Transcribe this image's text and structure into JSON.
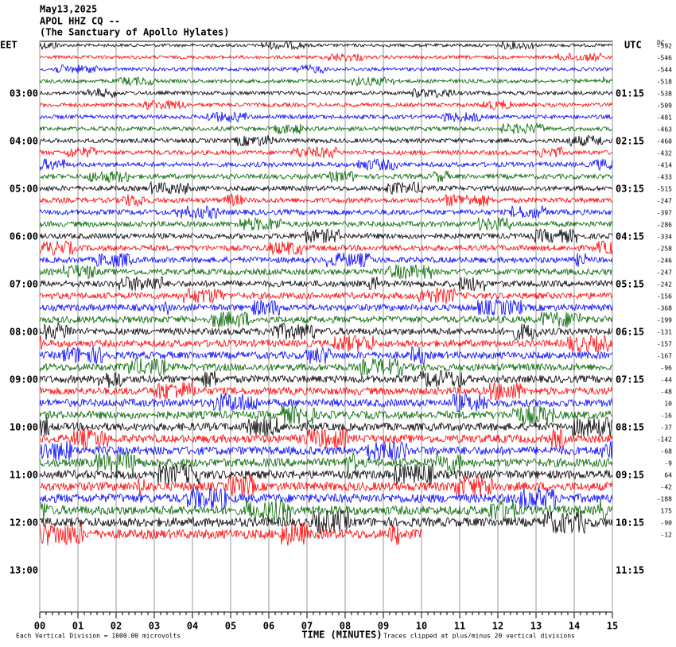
{
  "chart_data": {
    "type": "helicorder",
    "title_lines": [
      "May13,2025",
      "APOL HHZ CQ --",
      "(The Sanctuary of Apollo Hylates)"
    ],
    "left_axis_label": "EET",
    "right_axis_label": "UTC",
    "dc_label": "DC",
    "left_times": [
      "03:00",
      "04:00",
      "05:00",
      "06:00",
      "07:00",
      "08:00",
      "09:00",
      "10:00",
      "11:00",
      "12:00",
      "13:00"
    ],
    "right_times": [
      "01:15",
      "02:15",
      "03:15",
      "04:15",
      "05:15",
      "06:15",
      "07:15",
      "08:15",
      "09:15",
      "10:15",
      "11:15"
    ],
    "dc_offsets": [
      -592,
      -546,
      -544,
      -518,
      -538,
      -509,
      -481,
      -463,
      -460,
      -432,
      -414,
      -433,
      -515,
      -247,
      -397,
      -286,
      -334,
      -258,
      -246,
      -247,
      -242,
      -156,
      -368,
      -199,
      -131,
      -157,
      -167,
      -96,
      -44,
      -48,
      10,
      -16,
      -37,
      -142,
      -68,
      -9,
      64,
      -42,
      -188,
      175,
      -90,
      -12
    ],
    "trace_colors": [
      "#000000",
      "#ff0000",
      "#0000ff",
      "#006400"
    ],
    "xlabel": "TIME (MINUTES)",
    "xlim": [
      0,
      15
    ],
    "xticks": [
      {
        "value": 0,
        "label": "00"
      },
      {
        "value": 1,
        "label": "01"
      },
      {
        "value": 2,
        "label": "02"
      },
      {
        "value": 3,
        "label": "03"
      },
      {
        "value": 4,
        "label": "04"
      },
      {
        "value": 5,
        "label": "05"
      },
      {
        "value": 6,
        "label": "06"
      },
      {
        "value": 7,
        "label": "07"
      },
      {
        "value": 8,
        "label": "08"
      },
      {
        "value": 9,
        "label": "09"
      },
      10,
      11,
      12,
      13,
      14,
      15
    ],
    "note_left": "Each Vertical Division = 1000.00 microvolts",
    "note_right": "Traces clipped at plus/minus 20 vertical divisions"
  }
}
